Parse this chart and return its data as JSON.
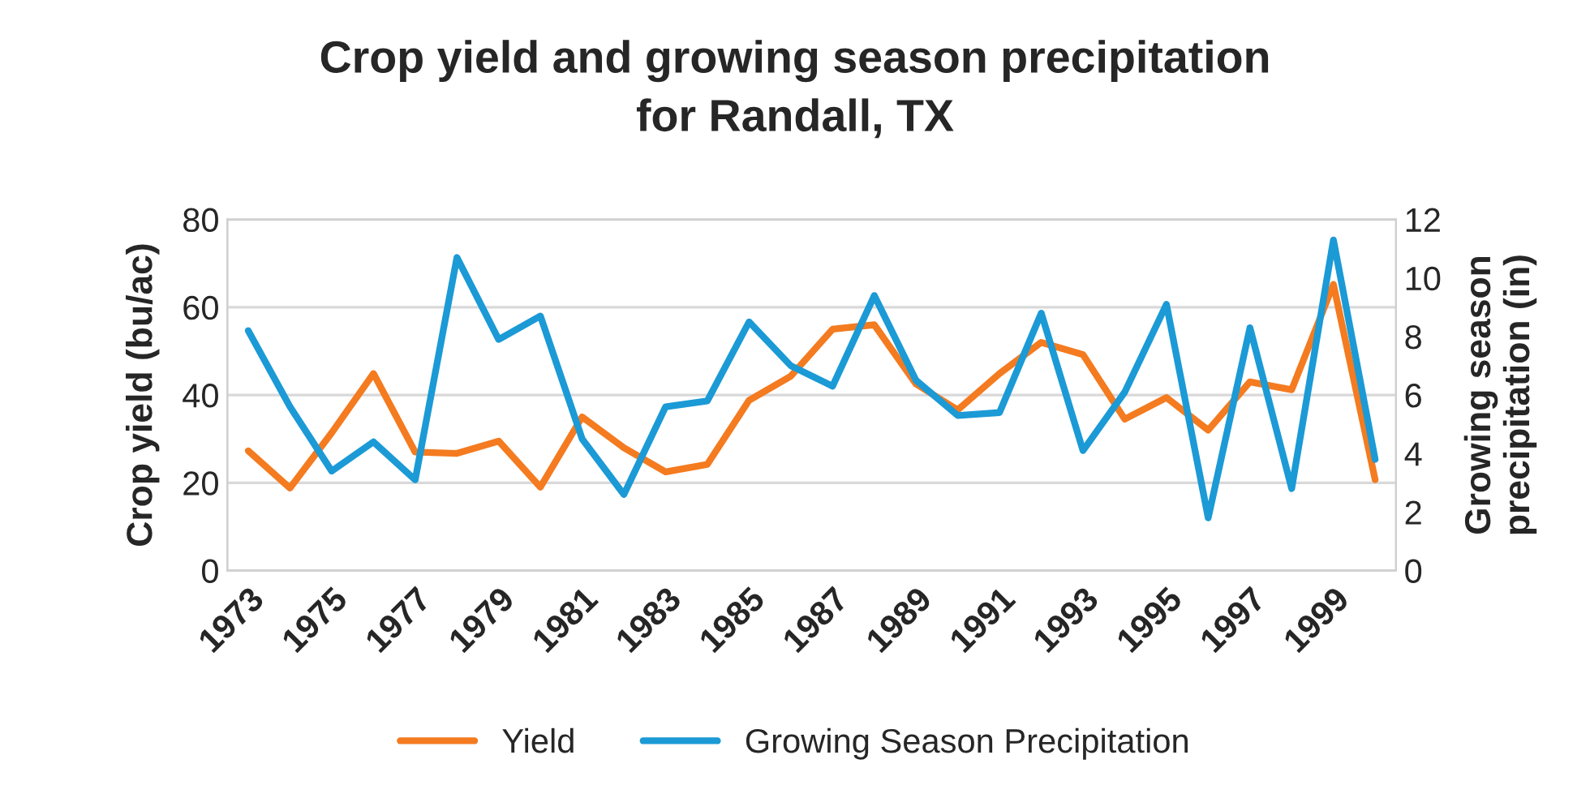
{
  "chart_data": {
    "type": "line",
    "title": "Crop yield and growing season precipitation\nfor Randall, TX",
    "ylabel": "Crop yield (bu/ac)",
    "y2label": "Growing season\nprecipitation (in)",
    "categories": [
      "1973",
      null,
      "1975",
      null,
      "1977",
      null,
      "1979",
      null,
      "1981",
      null,
      "1983",
      null,
      "1985",
      null,
      "1987",
      null,
      "1989",
      null,
      "1991",
      null,
      "1993",
      null,
      "1995",
      null,
      "1997",
      null,
      "1999",
      null
    ],
    "series": [
      {
        "name": "Yield",
        "color": "#f47b20",
        "values": [
          27.3,
          18.8,
          31.4,
          44.9,
          27.0,
          26.7,
          29.5,
          19.0,
          35.0,
          28.0,
          22.5,
          24.2,
          38.8,
          44.3,
          55.0,
          56.0,
          42.5,
          36.6,
          44.9,
          52.0,
          49.2,
          34.5,
          39.4,
          32.0,
          43.0,
          41.2,
          65.2,
          20.7
        ]
      },
      {
        "name": "Growing Season Precipitation",
        "color": "#1b9ad6",
        "axis": "y2",
        "values": [
          8.2,
          5.6,
          3.4,
          4.4,
          3.1,
          10.7,
          7.9,
          8.7,
          4.5,
          2.6,
          5.6,
          5.8,
          8.5,
          7.0,
          6.3,
          9.4,
          6.5,
          5.3,
          5.4,
          8.8,
          4.1,
          6.1,
          9.1,
          1.8,
          8.3,
          2.8,
          11.3,
          3.8
        ]
      }
    ],
    "ylim": [
      0,
      80
    ],
    "yticks": [
      0,
      20,
      40,
      60,
      80
    ],
    "y2lim": [
      0,
      12
    ],
    "y2ticks": [
      0,
      2,
      4,
      6,
      8,
      10,
      12
    ],
    "grid": "y",
    "legend": "bottom",
    "marker": "none",
    "line_style": "solid"
  }
}
